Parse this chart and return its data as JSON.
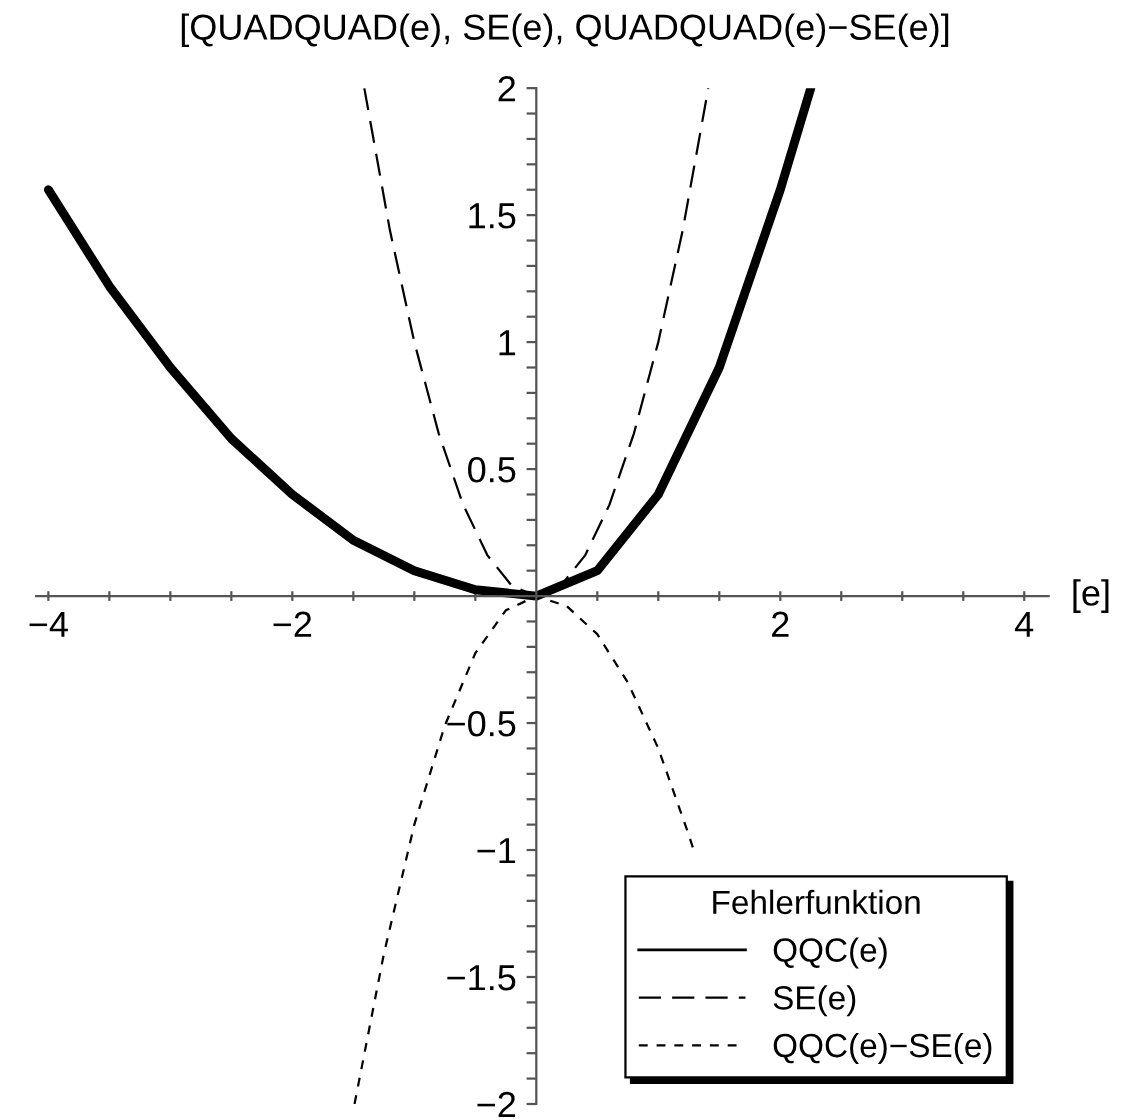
{
  "chart_data": {
    "type": "line",
    "title": "[QUADQUAD(e), SE(e), QUADQUAD(e)−SE(e)]",
    "xlabel": "[e]",
    "legend_title": "Fehlerfunktion",
    "legend": "bottom right",
    "grid": false,
    "marker": "none",
    "xlim": [
      -4.1,
      4.2
    ],
    "ylim": [
      -2,
      2
    ],
    "xticks": [
      {
        "value": -4,
        "label": "−4"
      },
      {
        "value": -3.5,
        "label": null
      },
      {
        "value": -3,
        "label": null
      },
      {
        "value": -2.5,
        "label": null
      },
      {
        "value": -2,
        "label": "−2"
      },
      {
        "value": -1.5,
        "label": null
      },
      {
        "value": -1,
        "label": null
      },
      {
        "value": -0.5,
        "label": null
      },
      {
        "value": 0.5,
        "label": null
      },
      {
        "value": 1,
        "label": null
      },
      {
        "value": 1.5,
        "label": null
      },
      2,
      {
        "value": 2.5,
        "label": null
      },
      {
        "value": 3,
        "label": null
      },
      {
        "value": 3.5,
        "label": null
      },
      4
    ],
    "yticks": [
      {
        "value": -2,
        "label": "−2"
      },
      {
        "value": -1.9,
        "label": null
      },
      {
        "value": -1.8,
        "label": null
      },
      {
        "value": -1.7,
        "label": null
      },
      {
        "value": -1.6,
        "label": null
      },
      {
        "value": -1.5,
        "label": "−1.5"
      },
      {
        "value": -1.4,
        "label": null
      },
      {
        "value": -1.3,
        "label": null
      },
      {
        "value": -1.2,
        "label": null
      },
      {
        "value": -1.1,
        "label": null
      },
      {
        "value": -1,
        "label": "−1"
      },
      {
        "value": -0.9,
        "label": null
      },
      {
        "value": -0.8,
        "label": null
      },
      {
        "value": -0.7,
        "label": null
      },
      {
        "value": -0.6,
        "label": null
      },
      {
        "value": -0.5,
        "label": "−0.5"
      },
      {
        "value": -0.4,
        "label": null
      },
      {
        "value": -0.3,
        "label": null
      },
      {
        "value": -0.2,
        "label": null
      },
      {
        "value": -0.1,
        "label": null
      },
      {
        "value": 0.1,
        "label": null
      },
      {
        "value": 0.2,
        "label": null
      },
      {
        "value": 0.3,
        "label": null
      },
      {
        "value": 0.4,
        "label": null
      },
      0.5,
      {
        "value": 0.6,
        "label": null
      },
      {
        "value": 0.7,
        "label": null
      },
      {
        "value": 0.8,
        "label": null
      },
      {
        "value": 0.9,
        "label": null
      },
      1,
      {
        "value": 1.1,
        "label": null
      },
      {
        "value": 1.2,
        "label": null
      },
      {
        "value": 1.3,
        "label": null
      },
      {
        "value": 1.4,
        "label": null
      },
      1.5,
      {
        "value": 1.6,
        "label": null
      },
      {
        "value": 1.7,
        "label": null
      },
      {
        "value": 1.8,
        "label": null
      },
      {
        "value": 1.9,
        "label": null
      },
      2
    ],
    "series": [
      {
        "name": "QQC(e)",
        "color": "#000000",
        "line_style": "solid",
        "x": [
          -4,
          -3.5,
          -3,
          -2.5,
          -2,
          -1.5,
          -1,
          -0.5,
          0,
          0.5,
          1,
          1.5,
          2,
          2.25
        ],
        "values": [
          1.6,
          1.22,
          0.9,
          0.62,
          0.4,
          0.22,
          0.1,
          0.025,
          0,
          0.1,
          0.4,
          0.9,
          1.6,
          2.0
        ]
      },
      {
        "name": "SE(e)",
        "color": "#000000",
        "line_style": "dashed",
        "x": [
          -1.41,
          -1.2,
          -1,
          -0.8,
          -0.6,
          -0.4,
          -0.2,
          0,
          0.2,
          0.4,
          0.6,
          0.8,
          1,
          1.2,
          1.41
        ],
        "values": [
          2.0,
          1.44,
          1.0,
          0.64,
          0.36,
          0.16,
          0.04,
          0,
          0.04,
          0.16,
          0.36,
          0.64,
          1.0,
          1.44,
          2.0
        ]
      },
      {
        "name": "QQC(e)−SE(e)",
        "color": "#000000",
        "line_style": "dotted",
        "x": [
          -1.49,
          -1.25,
          -1,
          -0.75,
          -0.5,
          -0.25,
          0,
          0.25,
          0.5,
          0.75,
          1,
          1.25,
          1.29
        ],
        "values": [
          -2.0,
          -1.41,
          -0.9,
          -0.51,
          -0.225,
          -0.056,
          0,
          -0.04,
          -0.15,
          -0.34,
          -0.6,
          -0.94,
          -1.0
        ]
      }
    ]
  }
}
